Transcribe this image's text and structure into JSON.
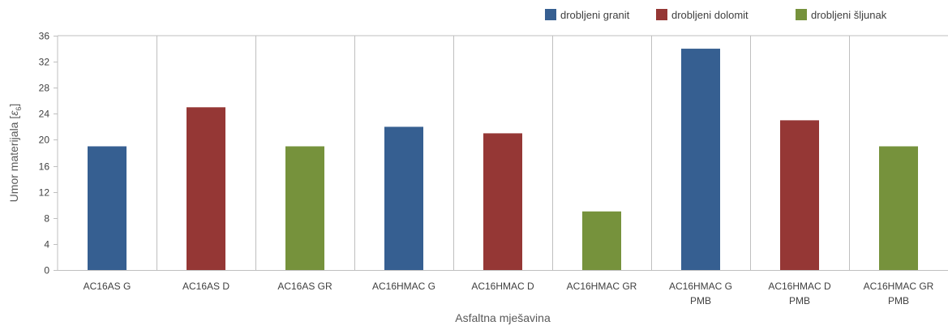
{
  "chart_data": {
    "type": "bar",
    "xlabel": "Asfaltna mješavina",
    "ylabel_main": "Umor materijala [",
    "ylabel_sym": "ε",
    "ylabel_sub": "6",
    "ylabel_end": "]",
    "ylim": [
      0,
      36
    ],
    "yticks": [
      "0",
      "4",
      "8",
      "12",
      "16",
      "20",
      "24",
      "28",
      "32",
      "36"
    ],
    "grid": "vertical category dividers",
    "legend_position": "top-right",
    "legend": [
      {
        "label": "drobljeni granit",
        "color": "#365f91"
      },
      {
        "label": "drobljeni dolomit",
        "color": "#953735"
      },
      {
        "label": "drobljeni šljunak",
        "color": "#76923c"
      }
    ],
    "categories": [
      [
        "AC16AS G"
      ],
      [
        "AC16AS D"
      ],
      [
        "AC16AS GR"
      ],
      [
        "AC16HMAC G"
      ],
      [
        "AC16HMAC D"
      ],
      [
        "AC16HMAC GR"
      ],
      [
        "AC16HMAC G",
        "PMB"
      ],
      [
        "AC16HMAC D",
        "PMB"
      ],
      [
        "AC16HMAC GR",
        "PMB"
      ]
    ],
    "values": [
      19,
      25,
      19,
      22,
      21,
      9,
      34,
      23,
      19
    ],
    "bar_series": [
      0,
      1,
      2,
      0,
      1,
      2,
      0,
      1,
      2
    ]
  }
}
